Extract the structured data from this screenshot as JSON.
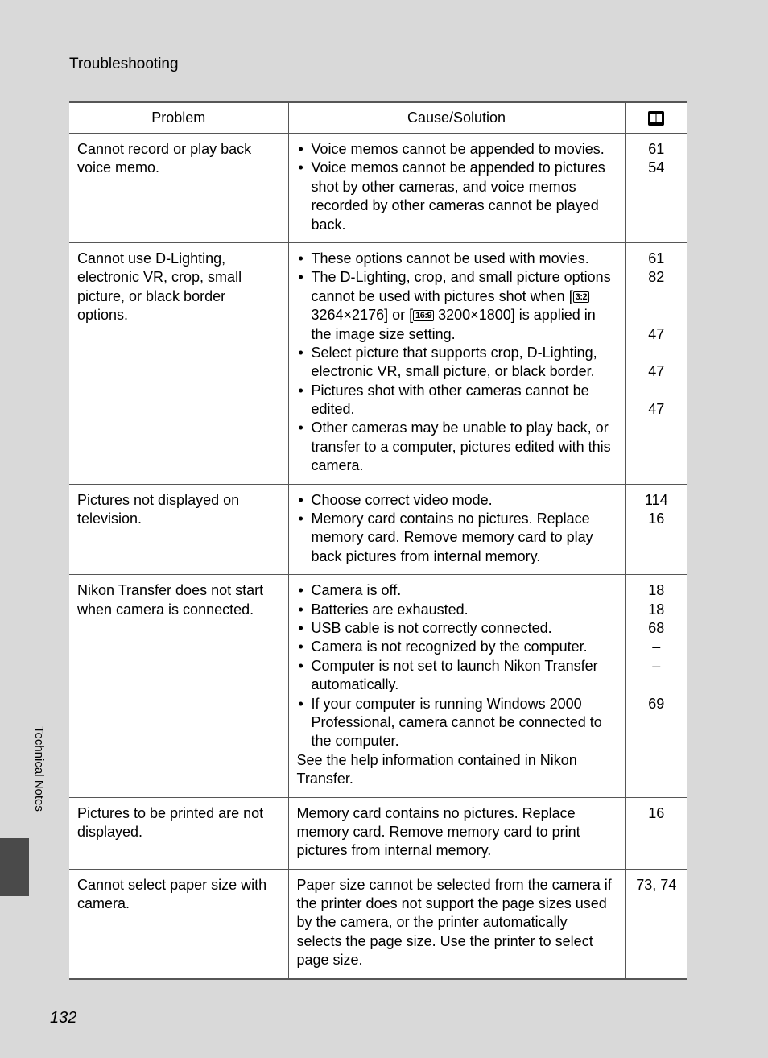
{
  "section_title": "Troubleshooting",
  "side_label": "Technical Notes",
  "page_number": "132",
  "headers": {
    "problem": "Problem",
    "solution": "Cause/Solution"
  },
  "badges": {
    "ratio_32": "3:2",
    "ratio_169": "16:9"
  },
  "rows": [
    {
      "problem": "Cannot record or play back voice memo.",
      "bullets": [
        "Voice memos cannot be appended to movies.",
        "Voice memos cannot be appended to pictures shot by other cameras, and voice memos recorded by other cameras cannot be played back."
      ],
      "refs": [
        "61",
        "54"
      ]
    },
    {
      "problem": "Cannot use D-Lighting, electronic VR, crop, small picture, or black border options.",
      "bullets": [
        "These options cannot be used with movies.",
        {
          "html": true,
          "pre": "The D-Lighting, crop, and small picture options cannot be used with pictures shot when [",
          "mid1_badge": "ratio_32",
          "mid1_text": " 3264×2176] or [",
          "mid2_badge": "ratio_169",
          "mid2_text": " 3200×1800] is applied in the image size setting."
        },
        "Select picture that supports crop, D-Lighting, electronic VR, small picture, or black border.",
        "Pictures shot with other cameras cannot be edited.",
        "Other cameras may be unable to play back, or transfer to a computer, pictures edited with this camera."
      ],
      "refs": [
        "61",
        "82",
        "",
        "",
        "47",
        "",
        "47",
        "",
        "47"
      ]
    },
    {
      "problem": "Pictures not displayed on television.",
      "bullets": [
        "Choose correct video mode.",
        "Memory card contains no pictures. Replace memory card. Remove memory card to play back pictures from internal memory."
      ],
      "refs": [
        "114",
        "16"
      ]
    },
    {
      "problem": "Nikon Transfer does not start when camera is connected.",
      "bullets": [
        "Camera is off.",
        "Batteries are exhausted.",
        "USB cable is not correctly connected.",
        "Camera is not recognized by the computer.",
        "Computer is not set to launch Nikon Transfer automatically.",
        "If your computer is running Windows 2000 Professional, camera cannot be connected to the computer."
      ],
      "trailing": "See the help information contained in Nikon Transfer.",
      "refs": [
        "18",
        "18",
        "68",
        "–",
        "–",
        "",
        "69"
      ]
    },
    {
      "problem": "Pictures to be printed are not displayed.",
      "plain": "Memory card contains no pictures. Replace memory card. Remove memory card to print pictures from internal memory.",
      "refs": [
        "16"
      ]
    },
    {
      "problem": "Cannot select paper size with camera.",
      "plain": "Paper size cannot be selected from the camera if the printer does not support the page sizes used by the camera, or the printer automatically selects the page size. Use the printer to select page size.",
      "refs": [
        "73, 74"
      ]
    }
  ]
}
